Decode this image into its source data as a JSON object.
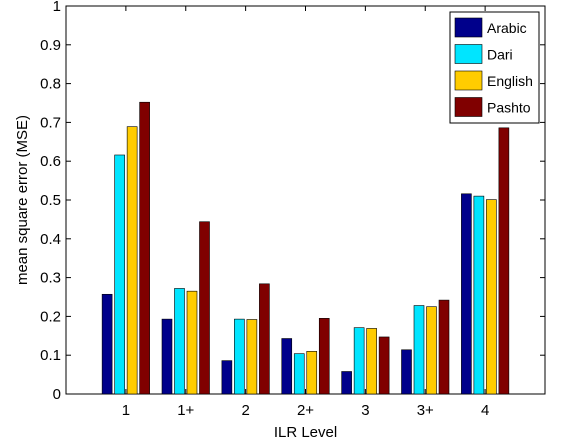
{
  "chart_data": {
    "type": "bar",
    "title": "",
    "xlabel": "ILR Level",
    "ylabel": "mean square error (MSE)",
    "categories": [
      "1",
      "1+",
      "2",
      "2+",
      "3",
      "3+",
      "4"
    ],
    "ylim": [
      0,
      1
    ],
    "yticks": [
      "0",
      "0.1",
      "0.2",
      "0.3",
      "0.4",
      "0.5",
      "0.6",
      "0.7",
      "0.8",
      "0.9",
      "1"
    ],
    "grid": false,
    "legend_position": "top-right",
    "series": [
      {
        "name": "Arabic",
        "color": "#00008b",
        "values": [
          0.257,
          0.193,
          0.086,
          0.143,
          0.058,
          0.114,
          0.516
        ]
      },
      {
        "name": "Dari",
        "color": "#00e5ff",
        "values": [
          0.616,
          0.272,
          0.193,
          0.104,
          0.171,
          0.228,
          0.51
        ]
      },
      {
        "name": "English",
        "color": "#ffcc00",
        "values": [
          0.689,
          0.265,
          0.192,
          0.11,
          0.169,
          0.225,
          0.501
        ]
      },
      {
        "name": "Pashto",
        "color": "#800000",
        "values": [
          0.752,
          0.444,
          0.284,
          0.195,
          0.147,
          0.242,
          0.686
        ]
      }
    ]
  }
}
